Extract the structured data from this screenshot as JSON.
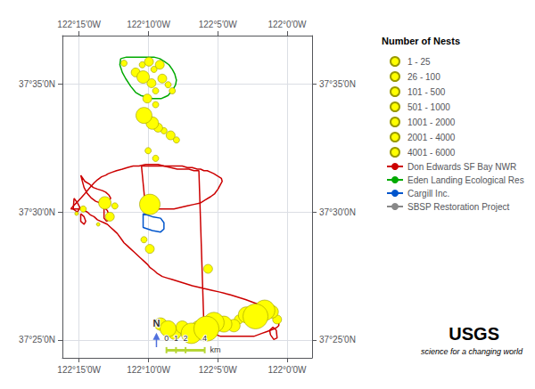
{
  "chart_data": {
    "type": "scatter",
    "xlim": [
      -122.27,
      -121.97
    ],
    "ylim": [
      37.405,
      37.615
    ],
    "xticks": [
      {
        "value": -122.25,
        "label": "122°15′0W"
      },
      {
        "value": -122.1666,
        "label": "122°10′0W"
      },
      {
        "value": -122.0833,
        "label": "122°5′0W"
      },
      {
        "value": -122.0,
        "label": "122°0′0W"
      }
    ],
    "yticks": [
      {
        "value": 37.4167,
        "label": "37°25′0N"
      },
      {
        "value": 37.5,
        "label": "37°30′0N"
      },
      {
        "value": 37.5833,
        "label": "37°35′0N"
      }
    ],
    "grid": true,
    "legend": "right",
    "legend_title": "Number of Nests",
    "color": "#FFFF00",
    "edge_color": "#999900",
    "x": [
      -122.196,
      -122.182,
      -122.174,
      -122.166,
      -122.16,
      -122.153,
      -122.173,
      -122.163,
      -122.158,
      -122.15,
      -122.143,
      -122.138,
      -122.168,
      -122.158,
      -122.172,
      -122.162,
      -122.155,
      -122.148,
      -122.14,
      -122.133,
      -122.167,
      -122.158,
      -122.165,
      -122.152,
      -122.143,
      -122.135,
      -122.126,
      -122.115,
      -122.106,
      -122.097,
      -122.088,
      -122.076,
      -122.064,
      -122.058,
      -122.049,
      -122.038,
      -122.027,
      -122.018,
      -122.012,
      -122.165,
      -122.172,
      -122.227,
      -122.219,
      -122.213,
      -122.207,
      -122.253,
      -122.245,
      -122.095
    ],
    "y": [
      37.597,
      37.591,
      37.596,
      37.598,
      37.593,
      37.596,
      37.588,
      37.584,
      37.579,
      37.587,
      37.583,
      37.579,
      37.574,
      37.57,
      37.563,
      37.558,
      37.555,
      37.553,
      37.55,
      37.547,
      37.54,
      37.535,
      37.505,
      37.427,
      37.424,
      37.421,
      37.425,
      37.421,
      37.424,
      37.424,
      37.428,
      37.427,
      37.426,
      37.43,
      37.433,
      37.432,
      37.436,
      37.435,
      37.43,
      37.476,
      37.482,
      37.492,
      37.506,
      37.497,
      37.504,
      37.499,
      37.502,
      37.463
    ],
    "nests": [
      63,
      300,
      63,
      300,
      63,
      300,
      750,
      300,
      63,
      300,
      63,
      63,
      300,
      63,
      1500,
      750,
      300,
      63,
      300,
      63,
      63,
      63,
      3000,
      750,
      1500,
      750,
      750,
      3000,
      1500,
      5000,
      3000,
      1500,
      750,
      300,
      1500,
      5000,
      3000,
      750,
      300,
      300,
      63,
      12,
      750,
      300,
      63,
      12,
      63,
      300
    ],
    "size_bins": [
      {
        "label": "1 - 25",
        "min": 1,
        "max": 25
      },
      {
        "label": "26 - 100",
        "min": 26,
        "max": 100
      },
      {
        "label": "101 - 500",
        "min": 101,
        "max": 500
      },
      {
        "label": "501 - 1000",
        "min": 501,
        "max": 1000
      },
      {
        "label": "1001 - 2000",
        "min": 1001,
        "max": 2000
      },
      {
        "label": "2001 - 4000",
        "min": 2001,
        "max": 4000
      },
      {
        "label": "4001 - 6000",
        "min": 4001,
        "max": 6000
      }
    ],
    "polygons": [
      {
        "name": "Don Edwards SF Bay NWR",
        "color": "#cc0000",
        "line_style": "solid",
        "parts": [
          {
            "x": [
              -122.26,
              -122.255,
              -122.248,
              -122.243,
              -122.237,
              -122.232,
              -122.228,
              -122.223,
              -122.218,
              -122.215,
              -122.21,
              -122.205,
              -122.198,
              -122.192,
              -122.185,
              -122.178,
              -122.17,
              -122.162,
              -122.155,
              -122.148,
              -122.14,
              -122.132,
              -122.124,
              -122.118,
              -122.112,
              -122.106,
              -122.1,
              -122.095,
              -122.09,
              -122.085,
              -122.08,
              -122.075,
              -122.07,
              -122.065,
              -122.06,
              -122.055,
              -122.05,
              -122.045,
              -122.04,
              -122.035,
              -122.03,
              -122.025,
              -122.02,
              -122.015,
              -122.012,
              -122.01,
              -122.01,
              -122.012,
              -122.015,
              -122.02,
              -122.025,
              -122.03,
              -122.035,
              -122.04,
              -122.045,
              -122.05,
              -122.056,
              -122.062,
              -122.068,
              -122.075,
              -122.082,
              -122.09,
              -122.098,
              -122.106,
              -122.114,
              -122.12,
              -122.126,
              -122.132,
              -122.138,
              -122.144,
              -122.15,
              -122.156,
              -122.16,
              -122.165,
              -122.168,
              -122.172,
              -122.176,
              -122.18,
              -122.184,
              -122.188,
              -122.192,
              -122.196,
              -122.2,
              -122.204,
              -122.208,
              -122.212,
              -122.216,
              -122.22,
              -122.224,
              -122.228,
              -122.232,
              -122.236,
              -122.24,
              -122.244,
              -122.248,
              -122.252,
              -122.256,
              -122.26,
              -122.26
            ],
            "y": [
              37.502,
              37.505,
              37.509,
              37.512,
              37.516,
              37.519,
              37.521,
              37.523,
              37.524,
              37.525,
              37.526,
              37.527,
              37.528,
              37.529,
              37.53,
              37.53,
              37.531,
              37.531,
              37.531,
              37.53,
              37.529,
              37.528,
              37.528,
              37.528,
              37.527,
              37.527,
              37.426,
              37.423,
              37.421,
              37.42,
              37.419,
              37.419,
              37.419,
              37.419,
              37.419,
              37.419,
              37.419,
              37.419,
              37.419,
              37.42,
              37.421,
              37.422,
              37.423,
              37.424,
              37.425,
              37.426,
              37.428,
              37.43,
              37.432,
              37.434,
              37.436,
              37.438,
              37.44,
              37.441,
              37.442,
              37.443,
              37.444,
              37.445,
              37.446,
              37.447,
              37.448,
              37.449,
              37.45,
              37.451,
              37.452,
              37.453,
              37.454,
              37.455,
              37.456,
              37.457,
              37.458,
              37.46,
              37.462,
              37.464,
              37.466,
              37.468,
              37.47,
              37.472,
              37.474,
              37.476,
              37.478,
              37.48,
              37.483,
              37.486,
              37.488,
              37.49,
              37.492,
              37.493,
              37.494,
              37.495,
              37.497,
              37.498,
              37.5,
              37.501,
              37.502,
              37.502,
              37.502,
              37.502,
              37.502
            ]
          },
          {
            "x": [
              -122.248,
              -122.243,
              -122.237,
              -122.233,
              -122.228,
              -122.222,
              -122.218,
              -122.214,
              -122.212,
              -122.215,
              -122.22,
              -122.225,
              -122.23,
              -122.235,
              -122.24,
              -122.244,
              -122.248
            ],
            "y": [
              37.524,
              37.52,
              37.518,
              37.516,
              37.515,
              37.514,
              37.513,
              37.511,
              37.509,
              37.507,
              37.506,
              37.506,
              37.507,
              37.509,
              37.512,
              37.516,
              37.524
            ]
          },
          {
            "x": [
              -122.256,
              -122.252,
              -122.249,
              -122.252,
              -122.257,
              -122.256
            ],
            "y": [
              37.509,
              37.506,
              37.503,
              37.5,
              37.502,
              37.509
            ]
          },
          {
            "x": [
              -122.248,
              -122.244,
              -122.242,
              -122.244,
              -122.248,
              -122.248
            ],
            "y": [
              37.499,
              37.497,
              37.494,
              37.492,
              37.494,
              37.499
            ]
          },
          {
            "x": [
              -122.22,
              -122.216,
              -122.214,
              -122.214,
              -122.217,
              -122.22,
              -122.22
            ],
            "y": [
              37.503,
              37.501,
              37.498,
              37.495,
              37.494,
              37.496,
              37.503
            ]
          },
          {
            "x": [
              -122.175,
              -122.168,
              -122.16,
              -122.152,
              -122.145,
              -122.138,
              -122.132,
              -122.126,
              -122.12,
              -122.114,
              -122.108,
              -122.104,
              -122.1,
              -122.096,
              -122.092,
              -122.088,
              -122.085,
              -122.082,
              -122.079,
              -122.078,
              -122.08,
              -122.083,
              -122.087,
              -122.092,
              -122.098,
              -122.104,
              -122.112,
              -122.12,
              -122.128,
              -122.136,
              -122.144,
              -122.15,
              -122.155,
              -122.16,
              -122.165,
              -122.17,
              -122.175
            ],
            "y": [
              37.53,
              37.53,
              37.53,
              37.53,
              37.53,
              37.53,
              37.53,
              37.53,
              37.529,
              37.529,
              37.528,
              37.528,
              37.527,
              37.527,
              37.526,
              37.525,
              37.524,
              37.523,
              37.522,
              37.52,
              37.518,
              37.515,
              37.512,
              37.51,
              37.508,
              37.506,
              37.505,
              37.504,
              37.503,
              37.502,
              37.502,
              37.502,
              37.502,
              37.502,
              37.502,
              37.502,
              37.53
            ]
          },
          {
            "x": [
              -122.02,
              -122.016,
              -122.012,
              -122.013,
              -122.017,
              -122.021,
              -122.02
            ],
            "y": [
              37.42,
              37.417,
              37.418,
              37.423,
              37.425,
              37.423,
              37.42
            ]
          }
        ]
      },
      {
        "name": "Eden Landing Ecological Res",
        "color": "#00aa00",
        "line_style": "solid",
        "parts": [
          {
            "x": [
              -122.2,
              -122.193,
              -122.185,
              -122.177,
              -122.168,
              -122.16,
              -122.153,
              -122.147,
              -122.142,
              -122.138,
              -122.135,
              -122.133,
              -122.134,
              -122.137,
              -122.14,
              -122.143,
              -122.147,
              -122.151,
              -122.156,
              -122.162,
              -122.169,
              -122.176,
              -122.182,
              -122.188,
              -122.194,
              -122.198,
              -122.201,
              -122.2
            ],
            "y": [
              37.6,
              37.601,
              37.601,
              37.601,
              37.601,
              37.601,
              37.6,
              37.598,
              37.596,
              37.593,
              37.59,
              37.586,
              37.583,
              37.58,
              37.578,
              37.576,
              37.575,
              37.574,
              37.574,
              37.574,
              37.575,
              37.576,
              37.578,
              37.582,
              37.587,
              37.591,
              37.596,
              37.6
            ]
          }
        ]
      },
      {
        "name": "Cargill Inc.",
        "color": "#0055cc",
        "line_style": "solid",
        "parts": [
          {
            "x": [
              -122.173,
              -122.162,
              -122.152,
              -122.148,
              -122.148,
              -122.152,
              -122.162,
              -122.173,
              -122.173
            ],
            "y": [
              37.499,
              37.497,
              37.496,
              37.493,
              37.489,
              37.487,
              37.488,
              37.49,
              37.499
            ]
          }
        ]
      },
      {
        "name": "SBSP Restoration Project",
        "color": "#888888",
        "line_style": "dashed",
        "parts": []
      }
    ],
    "north_arrow": {
      "label": "N",
      "x": -122.157,
      "y": [
        37.412,
        37.419
      ]
    },
    "scale_bar": {
      "x": [
        -122.145,
        -122.133506,
        -122.122011,
        -122.099023
      ],
      "y": 37.41,
      "labels": [
        "0",
        "1",
        "2",
        "4"
      ],
      "unit": "km"
    },
    "annotations": [
      "USGS",
      "science for a changing world"
    ]
  }
}
